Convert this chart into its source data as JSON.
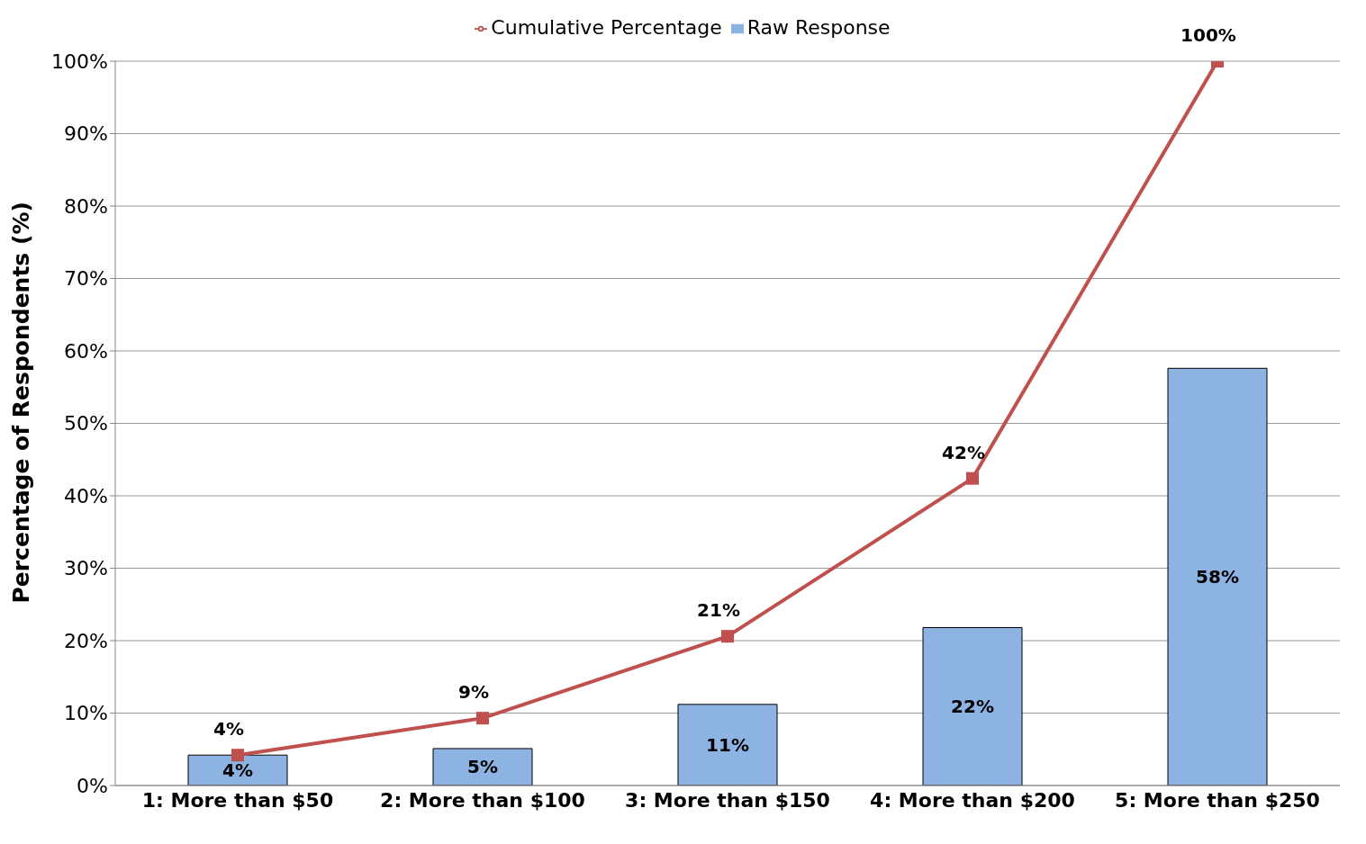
{
  "chart_data": {
    "type": "bar",
    "ylabel": "Percentage of Respondents (%)",
    "categories": [
      "1: More than $50",
      "2: More than $100",
      "3: More than $150",
      "4: More than $200",
      "5: More than $250"
    ],
    "series": [
      {
        "name": "Raw Response",
        "color": "#8db3e2",
        "values": [
          4.2,
          5.1,
          11.2,
          21.8,
          57.6
        ],
        "value_labels": [
          "4%",
          "5%",
          "11%",
          "22%",
          "58%"
        ]
      },
      {
        "name": "Cumulative Percentage",
        "type": "line",
        "color": "#c0504d",
        "marker": "square",
        "values": [
          4.2,
          9.3,
          20.6,
          42.4,
          100
        ],
        "value_labels": [
          "4%",
          "9%",
          "21%",
          "42%",
          "100%"
        ]
      }
    ],
    "ylim": [
      0,
      100
    ],
    "yticks": [
      {
        "value": 0,
        "label": "0%"
      },
      {
        "value": 10,
        "label": "10%"
      },
      {
        "value": 20,
        "label": "20%"
      },
      {
        "value": 30,
        "label": "30%"
      },
      {
        "value": 40,
        "label": "40%"
      },
      {
        "value": 50,
        "label": "50%"
      },
      {
        "value": 60,
        "label": "60%"
      },
      {
        "value": 70,
        "label": "70%"
      },
      {
        "value": 80,
        "label": "80%"
      },
      {
        "value": 90,
        "label": "90%"
      },
      {
        "value": 100,
        "label": "100%"
      }
    ],
    "grid": "y",
    "legend": "top"
  }
}
